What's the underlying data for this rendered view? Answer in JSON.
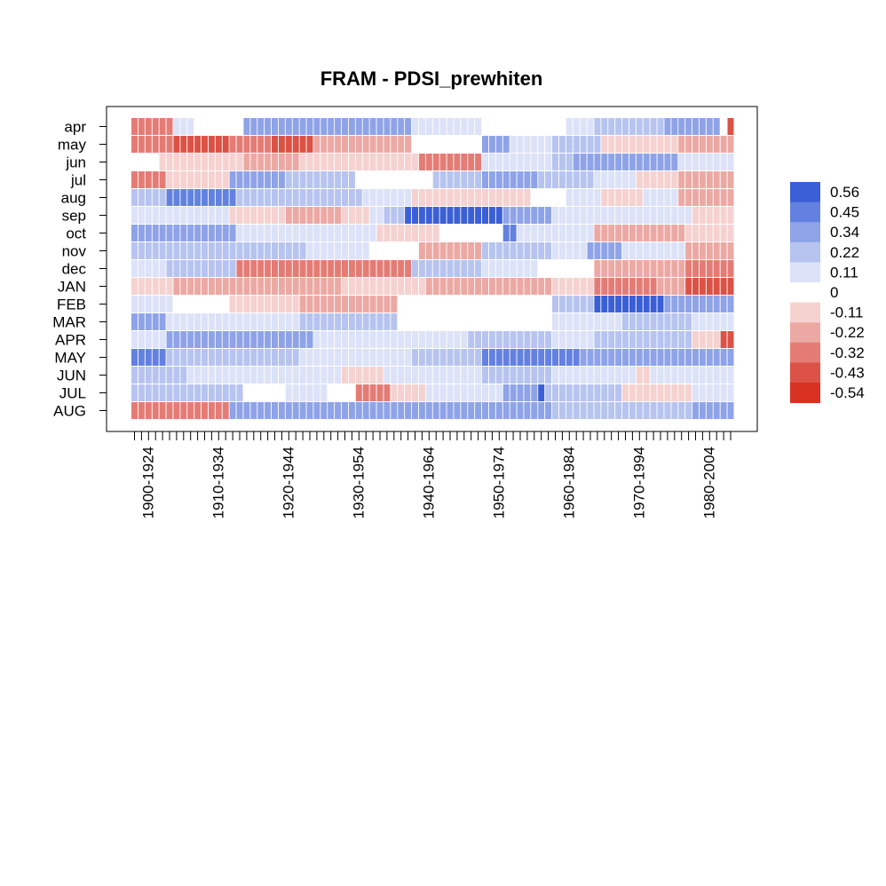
{
  "chart_data": {
    "type": "heatmap",
    "title": "FRAM - PDSI_prewhiten",
    "rows": [
      "apr",
      "may",
      "jun",
      "jul",
      "aug",
      "sep",
      "oct",
      "nov",
      "dec",
      "JAN",
      "FEB",
      "MAR",
      "APR",
      "MAY",
      "JUN",
      "JUL",
      "AUG"
    ],
    "n_windows": 86,
    "xtick_labels": [
      "1900-1924",
      "1910-1934",
      "1920-1944",
      "1930-1954",
      "1940-1964",
      "1950-1974",
      "1960-1984",
      "1970-1994",
      "1980-2004"
    ],
    "xtick_label_window_index": [
      2,
      12,
      22,
      32,
      42,
      52,
      62,
      72,
      82
    ],
    "legend": {
      "breaks": [
        0.56,
        0.45,
        0.34,
        0.22,
        0.11,
        0,
        -0.11,
        -0.22,
        -0.32,
        -0.43,
        -0.54
      ],
      "labels": [
        "0.56",
        "0.45",
        "0.34",
        "0.22",
        "0.11",
        "0",
        "-0.11",
        "-0.22",
        "-0.32",
        "-0.43",
        "-0.54"
      ],
      "colors": [
        "#3b5fd6",
        "#6381e0",
        "#8ea3e8",
        "#b7c4ef",
        "#dce2f8",
        "#ffffff",
        "#f5d2d0",
        "#eca9a4",
        "#e47c75",
        "#dc5246",
        "#d93222"
      ],
      "position": "right"
    },
    "segments": {
      "apr": [
        [
          0,
          6,
          -0.34
        ],
        [
          6,
          9,
          0.1
        ],
        [
          9,
          16,
          0.05
        ],
        [
          16,
          40,
          0.3
        ],
        [
          40,
          50,
          0.15
        ],
        [
          50,
          53,
          0.05
        ],
        [
          53,
          62,
          -0.05
        ],
        [
          62,
          66,
          0.15
        ],
        [
          66,
          71,
          0.25
        ],
        [
          71,
          76,
          0.18
        ],
        [
          76,
          84,
          0.28
        ],
        [
          84,
          85,
          0.04
        ],
        [
          85,
          86,
          -0.4
        ]
      ],
      "may": [
        [
          0,
          6,
          -0.3
        ],
        [
          6,
          14,
          -0.38
        ],
        [
          14,
          20,
          -0.3
        ],
        [
          20,
          26,
          -0.38
        ],
        [
          26,
          32,
          -0.25
        ],
        [
          32,
          40,
          -0.2
        ],
        [
          40,
          43,
          -0.05
        ],
        [
          43,
          50,
          0.04
        ],
        [
          50,
          54,
          0.3
        ],
        [
          54,
          60,
          0.12
        ],
        [
          60,
          67,
          0.2
        ],
        [
          67,
          78,
          -0.15
        ],
        [
          78,
          86,
          -0.25
        ]
      ],
      "jun": [
        [
          0,
          4,
          0.05
        ],
        [
          4,
          16,
          -0.15
        ],
        [
          16,
          24,
          -0.22
        ],
        [
          24,
          30,
          -0.15
        ],
        [
          30,
          41,
          -0.12
        ],
        [
          41,
          50,
          -0.28
        ],
        [
          50,
          60,
          0.15
        ],
        [
          60,
          63,
          0.25
        ],
        [
          63,
          73,
          0.38
        ],
        [
          73,
          78,
          0.3
        ],
        [
          78,
          86,
          0.15
        ]
      ],
      "jul": [
        [
          0,
          5,
          -0.33
        ],
        [
          5,
          10,
          -0.15
        ],
        [
          10,
          14,
          -0.08
        ],
        [
          14,
          22,
          0.3
        ],
        [
          22,
          32,
          0.18
        ],
        [
          32,
          43,
          0.05
        ],
        [
          43,
          50,
          0.18
        ],
        [
          50,
          58,
          0.35
        ],
        [
          58,
          66,
          0.18
        ],
        [
          66,
          72,
          0.1
        ],
        [
          72,
          78,
          -0.1
        ],
        [
          78,
          86,
          -0.18
        ]
      ],
      "aug": [
        [
          0,
          5,
          0.2
        ],
        [
          5,
          15,
          0.42
        ],
        [
          15,
          33,
          0.25
        ],
        [
          33,
          40,
          0.1
        ],
        [
          40,
          57,
          -0.12
        ],
        [
          57,
          62,
          0.04
        ],
        [
          62,
          67,
          0.15
        ],
        [
          67,
          73,
          -0.1
        ],
        [
          73,
          78,
          0.1
        ],
        [
          78,
          86,
          -0.22
        ]
      ],
      "sep": [
        [
          0,
          14,
          0.1
        ],
        [
          14,
          22,
          -0.12
        ],
        [
          22,
          30,
          -0.18
        ],
        [
          30,
          34,
          -0.08
        ],
        [
          34,
          36,
          0.15
        ],
        [
          36,
          39,
          0.25
        ],
        [
          39,
          53,
          0.5
        ],
        [
          53,
          60,
          0.3
        ],
        [
          60,
          68,
          0.12
        ],
        [
          68,
          80,
          0.06
        ],
        [
          80,
          86,
          -0.12
        ]
      ],
      "oct": [
        [
          0,
          15,
          0.3
        ],
        [
          15,
          28,
          0.15
        ],
        [
          28,
          35,
          0.08
        ],
        [
          35,
          44,
          -0.08
        ],
        [
          44,
          53,
          0.05
        ],
        [
          53,
          55,
          0.4
        ],
        [
          55,
          66,
          0.1
        ],
        [
          66,
          79,
          -0.22
        ],
        [
          79,
          86,
          -0.1
        ]
      ],
      "nov": [
        [
          0,
          14,
          0.25
        ],
        [
          14,
          25,
          0.18
        ],
        [
          25,
          34,
          0.1
        ],
        [
          34,
          41,
          0.04
        ],
        [
          41,
          50,
          -0.2
        ],
        [
          50,
          60,
          0.2
        ],
        [
          60,
          65,
          0.08
        ],
        [
          65,
          70,
          0.28
        ],
        [
          70,
          79,
          0.1
        ],
        [
          79,
          86,
          -0.25
        ]
      ],
      "dec": [
        [
          0,
          5,
          0.15
        ],
        [
          5,
          15,
          0.25
        ],
        [
          15,
          31,
          -0.32
        ],
        [
          31,
          40,
          -0.36
        ],
        [
          40,
          50,
          0.18
        ],
        [
          50,
          58,
          0.15
        ],
        [
          58,
          66,
          -0.05
        ],
        [
          66,
          79,
          -0.2
        ],
        [
          79,
          86,
          -0.28
        ]
      ],
      "JAN": [
        [
          0,
          6,
          -0.08
        ],
        [
          6,
          20,
          -0.18
        ],
        [
          20,
          30,
          -0.25
        ],
        [
          30,
          42,
          -0.12
        ],
        [
          42,
          48,
          -0.18
        ],
        [
          48,
          60,
          -0.22
        ],
        [
          60,
          66,
          -0.12
        ],
        [
          66,
          75,
          -0.3
        ],
        [
          75,
          79,
          -0.2
        ],
        [
          79,
          86,
          -0.42
        ]
      ],
      "FEB": [
        [
          0,
          6,
          0.15
        ],
        [
          6,
          14,
          0.05
        ],
        [
          14,
          24,
          -0.12
        ],
        [
          24,
          38,
          -0.18
        ],
        [
          38,
          50,
          0.04
        ],
        [
          50,
          60,
          0.05
        ],
        [
          60,
          66,
          0.2
        ],
        [
          66,
          76,
          0.5
        ],
        [
          76,
          86,
          0.38
        ]
      ],
      "MAR": [
        [
          0,
          5,
          0.3
        ],
        [
          5,
          14,
          0.08
        ],
        [
          14,
          24,
          0.1
        ],
        [
          24,
          38,
          0.18
        ],
        [
          38,
          50,
          0.05
        ],
        [
          50,
          60,
          -0.05
        ],
        [
          60,
          70,
          0.15
        ],
        [
          70,
          80,
          0.25
        ],
        [
          80,
          86,
          0.15
        ]
      ],
      "APR": [
        [
          0,
          5,
          0.08
        ],
        [
          5,
          26,
          0.3
        ],
        [
          26,
          31,
          0.15
        ],
        [
          31,
          40,
          0.06
        ],
        [
          40,
          48,
          0.06
        ],
        [
          48,
          60,
          0.2
        ],
        [
          60,
          66,
          0.15
        ],
        [
          66,
          80,
          0.25
        ],
        [
          80,
          84,
          -0.08
        ],
        [
          84,
          86,
          -0.42
        ]
      ],
      "MAY": [
        [
          0,
          5,
          0.4
        ],
        [
          5,
          14,
          0.25
        ],
        [
          14,
          24,
          0.2
        ],
        [
          24,
          30,
          0.12
        ],
        [
          30,
          40,
          0.06
        ],
        [
          40,
          50,
          0.2
        ],
        [
          50,
          64,
          0.42
        ],
        [
          64,
          80,
          0.28
        ],
        [
          80,
          86,
          0.3
        ]
      ],
      "JUN": [
        [
          0,
          8,
          0.2
        ],
        [
          8,
          16,
          0.12
        ],
        [
          16,
          24,
          0.08
        ],
        [
          24,
          30,
          0.1
        ],
        [
          30,
          36,
          -0.06
        ],
        [
          36,
          40,
          0.06
        ],
        [
          40,
          50,
          0.12
        ],
        [
          50,
          60,
          0.18
        ],
        [
          60,
          72,
          0.06
        ],
        [
          72,
          74,
          -0.15
        ],
        [
          74,
          86,
          0.12
        ]
      ],
      "JUL": [
        [
          0,
          5,
          0.25
        ],
        [
          5,
          16,
          0.2
        ],
        [
          16,
          22,
          0.05
        ],
        [
          22,
          28,
          0.15
        ],
        [
          28,
          32,
          0.05
        ],
        [
          32,
          37,
          -0.28
        ],
        [
          37,
          42,
          -0.12
        ],
        [
          42,
          47,
          0.06
        ],
        [
          47,
          53,
          0.15
        ],
        [
          53,
          58,
          0.3
        ],
        [
          58,
          59,
          0.5
        ],
        [
          59,
          70,
          0.2
        ],
        [
          70,
          80,
          -0.1
        ],
        [
          80,
          86,
          0.06
        ]
      ],
      "AUG": [
        [
          0,
          5,
          -0.3
        ],
        [
          5,
          14,
          -0.28
        ],
        [
          14,
          40,
          0.3
        ],
        [
          40,
          50,
          0.35
        ],
        [
          50,
          60,
          0.3
        ],
        [
          60,
          72,
          0.25
        ],
        [
          72,
          80,
          0.2
        ],
        [
          80,
          86,
          0.28
        ]
      ]
    }
  }
}
